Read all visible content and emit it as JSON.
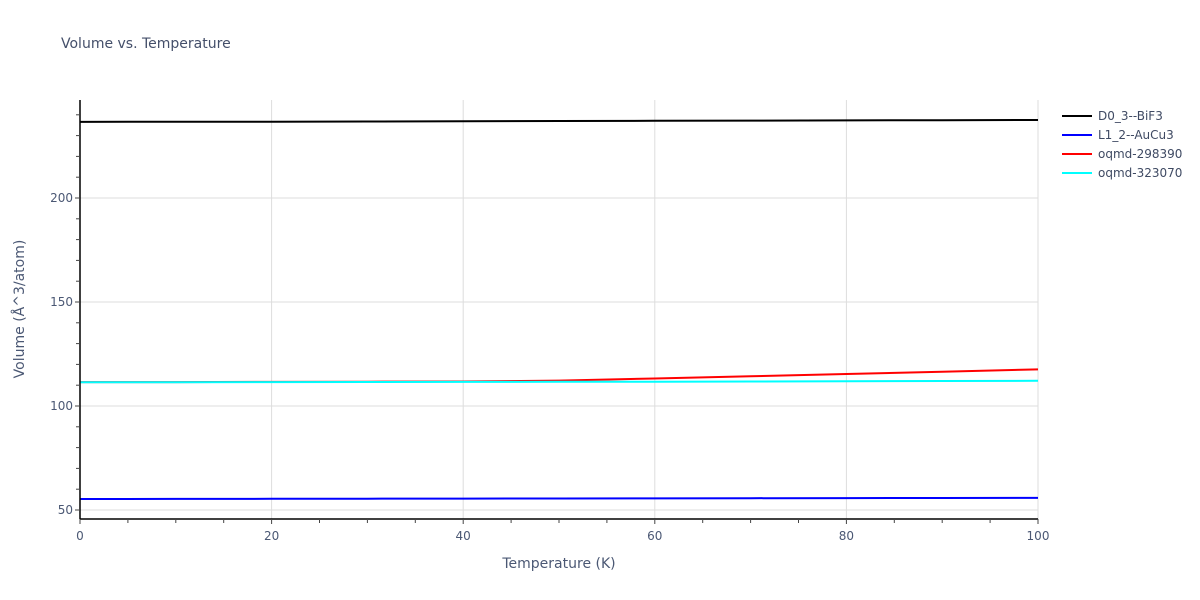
{
  "chart_data": {
    "type": "line",
    "title": "Volume vs. Temperature",
    "xlabel": "Temperature (K)",
    "ylabel": "Volume (Å^3/atom)",
    "xlim": [
      0,
      100
    ],
    "ylim": [
      45,
      245
    ],
    "x_ticks": [
      0,
      20,
      40,
      60,
      80,
      100
    ],
    "y_ticks": [
      50,
      100,
      150,
      200
    ],
    "grid": true,
    "legend_position": "right-top",
    "x": [
      0,
      10,
      20,
      30,
      40,
      50,
      60,
      70,
      80,
      90,
      100
    ],
    "series": [
      {
        "name": "D0_3--BiF3",
        "color": "#000000",
        "values": [
          236.6,
          236.7,
          236.7,
          236.8,
          236.9,
          237.0,
          237.1,
          237.2,
          237.3,
          237.4,
          237.5
        ]
      },
      {
        "name": "L1_2--AuCu3",
        "color": "#0000ff",
        "values": [
          55.3,
          55.35,
          55.4,
          55.45,
          55.5,
          55.55,
          55.6,
          55.65,
          55.7,
          55.75,
          55.8
        ]
      },
      {
        "name": "oqmd-298390",
        "color": "#ff0000",
        "values": [
          111.5,
          111.5,
          111.6,
          111.7,
          111.8,
          112.2,
          113.2,
          114.3,
          115.4,
          116.5,
          117.6
        ]
      },
      {
        "name": "oqmd-323070",
        "color": "#00ffff",
        "values": [
          111.4,
          111.45,
          111.5,
          111.55,
          111.6,
          111.65,
          111.7,
          111.8,
          111.9,
          112.0,
          112.1
        ]
      }
    ]
  }
}
